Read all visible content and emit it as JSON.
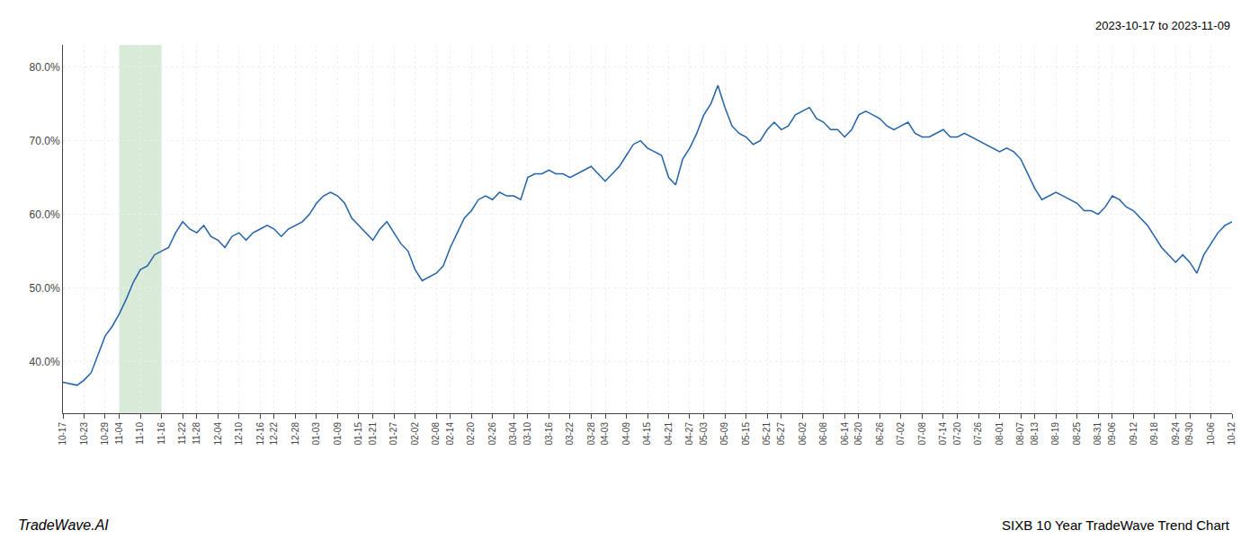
{
  "chart_data": {
    "type": "line",
    "title": "SIXB 10 Year TradeWave Trend Chart",
    "subtitle": "2023-10-17 to 2023-11-09",
    "annotations": [
      {
        "text": "TradeWave.AI"
      }
    ],
    "color": "#2262a8",
    "grid": true,
    "ylim": [
      33.0,
      83.0
    ],
    "yticks": [
      {
        "value": 40.0,
        "label": "40.0%"
      },
      {
        "value": 50.0,
        "label": "50.0%"
      },
      {
        "value": 60.0,
        "label": "60.0%"
      },
      {
        "value": 70.0,
        "label": "70.0%"
      },
      {
        "value": 80.0,
        "label": "80.0%"
      }
    ],
    "shaded_range": {
      "from": "11-04",
      "to": "11-16",
      "color": "#d8ead8"
    },
    "categories": [
      "10-17",
      null,
      null,
      "10-23",
      null,
      null,
      "10-29",
      null,
      "11-04",
      null,
      null,
      "11-10",
      null,
      null,
      "11-16",
      null,
      null,
      "11-22",
      null,
      "11-28",
      null,
      null,
      "12-04",
      null,
      null,
      "12-10",
      null,
      null,
      "12-16",
      null,
      "12-22",
      null,
      null,
      "12-28",
      null,
      null,
      "01-03",
      null,
      null,
      "01-09",
      null,
      null,
      "01-15",
      null,
      "01-21",
      null,
      null,
      "01-27",
      null,
      null,
      "02-02",
      null,
      null,
      "02-08",
      null,
      "02-14",
      null,
      null,
      "02-20",
      null,
      null,
      "02-26",
      null,
      null,
      "03-04",
      null,
      "03-10",
      null,
      null,
      "03-16",
      null,
      null,
      "03-22",
      null,
      null,
      "03-28",
      null,
      "04-03",
      null,
      null,
      "04-09",
      null,
      null,
      "04-15",
      null,
      null,
      "04-21",
      null,
      null,
      "04-27",
      null,
      "05-03",
      null,
      null,
      "05-09",
      null,
      null,
      "05-15",
      null,
      null,
      "05-21",
      null,
      "05-27",
      null,
      null,
      "06-02",
      null,
      null,
      "06-08",
      null,
      null,
      "06-14",
      null,
      "06-20",
      null,
      null,
      "06-26",
      null,
      null,
      "07-02",
      null,
      null,
      "07-08",
      null,
      null,
      "07-14",
      null,
      "07-20",
      null,
      null,
      "07-26",
      null,
      null,
      "08-01",
      null,
      null,
      "08-07",
      null,
      "08-13",
      null,
      null,
      "08-19",
      null,
      null,
      "08-25",
      null,
      null,
      "08-31",
      null,
      "09-06",
      null,
      null,
      "09-12",
      null,
      null,
      "09-18",
      null,
      null,
      "09-24",
      null,
      "09-30",
      null,
      null,
      "10-06",
      null,
      null,
      "10-12"
    ],
    "values": [
      37.2,
      37.0,
      36.8,
      37.5,
      38.5,
      41.0,
      43.5,
      44.8,
      46.5,
      48.5,
      50.8,
      52.5,
      53.0,
      54.5,
      55.0,
      55.5,
      57.5,
      59.0,
      58.0,
      57.5,
      58.5,
      57.0,
      56.5,
      55.5,
      57.0,
      57.5,
      56.5,
      57.5,
      58.0,
      58.5,
      58.0,
      57.0,
      58.0,
      58.5,
      59.0,
      60.0,
      61.5,
      62.5,
      63.0,
      62.5,
      61.5,
      59.5,
      58.5,
      57.5,
      56.5,
      58.0,
      59.0,
      57.5,
      56.0,
      55.0,
      52.5,
      51.0,
      51.5,
      52.0,
      53.0,
      55.5,
      57.5,
      59.5,
      60.5,
      62.0,
      62.5,
      62.0,
      63.0,
      62.5,
      62.5,
      62.0,
      65.0,
      65.5,
      65.5,
      66.0,
      65.5,
      65.5,
      65.0,
      65.5,
      66.0,
      66.5,
      65.5,
      64.5,
      65.5,
      66.5,
      68.0,
      69.5,
      70.0,
      69.0,
      68.5,
      68.0,
      65.0,
      64.0,
      67.5,
      69.0,
      71.0,
      73.5,
      75.0,
      77.5,
      74.5,
      72.0,
      71.0,
      70.5,
      69.5,
      70.0,
      71.5,
      72.5,
      71.5,
      72.0,
      73.5,
      74.0,
      74.5,
      73.0,
      72.5,
      71.5,
      71.5,
      70.5,
      71.5,
      73.5,
      74.0,
      73.5,
      73.0,
      72.0,
      71.5,
      72.0,
      72.5,
      71.0,
      70.5,
      70.5,
      71.0,
      71.5,
      70.5,
      70.5,
      71.0,
      70.5,
      70.0,
      69.5,
      69.0,
      68.5,
      69.0,
      68.5,
      67.5,
      65.5,
      63.5,
      62.0,
      62.5,
      63.0,
      62.5,
      62.0,
      61.5,
      60.5,
      60.5,
      60.0,
      61.0,
      62.5,
      62.0,
      61.0,
      60.5,
      59.5,
      58.5,
      57.0,
      55.5,
      54.5,
      53.5,
      54.5,
      53.5,
      52.0,
      54.5,
      56.0,
      57.5,
      58.5,
      59.0
    ]
  }
}
